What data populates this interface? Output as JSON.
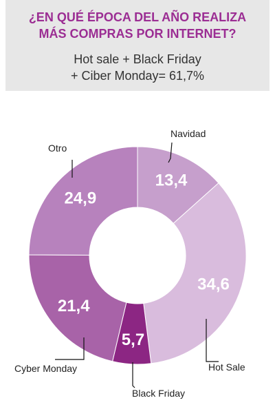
{
  "header": {
    "title_line1": "¿EN QUÉ ÉPOCA DEL AÑO REALIZA",
    "title_line2": "MÁS COMPRAS POR INTERNET?",
    "subtitle_line1": "Hot sale + Black Friday",
    "subtitle_line2": "+ Ciber Monday= 61,7%"
  },
  "colors": {
    "title": "#9b2d93",
    "header_bg": "#e7e7e7",
    "navidad": "#c69fcc",
    "hot_sale": "#d9bcdd",
    "black_friday": "#8c2683",
    "cyber_monday": "#a863a8",
    "otro": "#b782bd"
  },
  "chart_data": {
    "type": "pie",
    "variant": "donut",
    "slices": [
      {
        "label": "Navidad",
        "value": 13.4,
        "value_text": "13,4",
        "color": "#c69fcc"
      },
      {
        "label": "Hot Sale",
        "value": 34.6,
        "value_text": "34,6",
        "color": "#d9bcdd"
      },
      {
        "label": "Black Friday",
        "value": 5.7,
        "value_text": "5,7",
        "color": "#8c2683"
      },
      {
        "label": "Cyber Monday",
        "value": 21.4,
        "value_text": "21,4",
        "color": "#a863a8"
      },
      {
        "label": "Otro",
        "value": 24.9,
        "value_text": "24,9",
        "color": "#b782bd"
      }
    ]
  }
}
